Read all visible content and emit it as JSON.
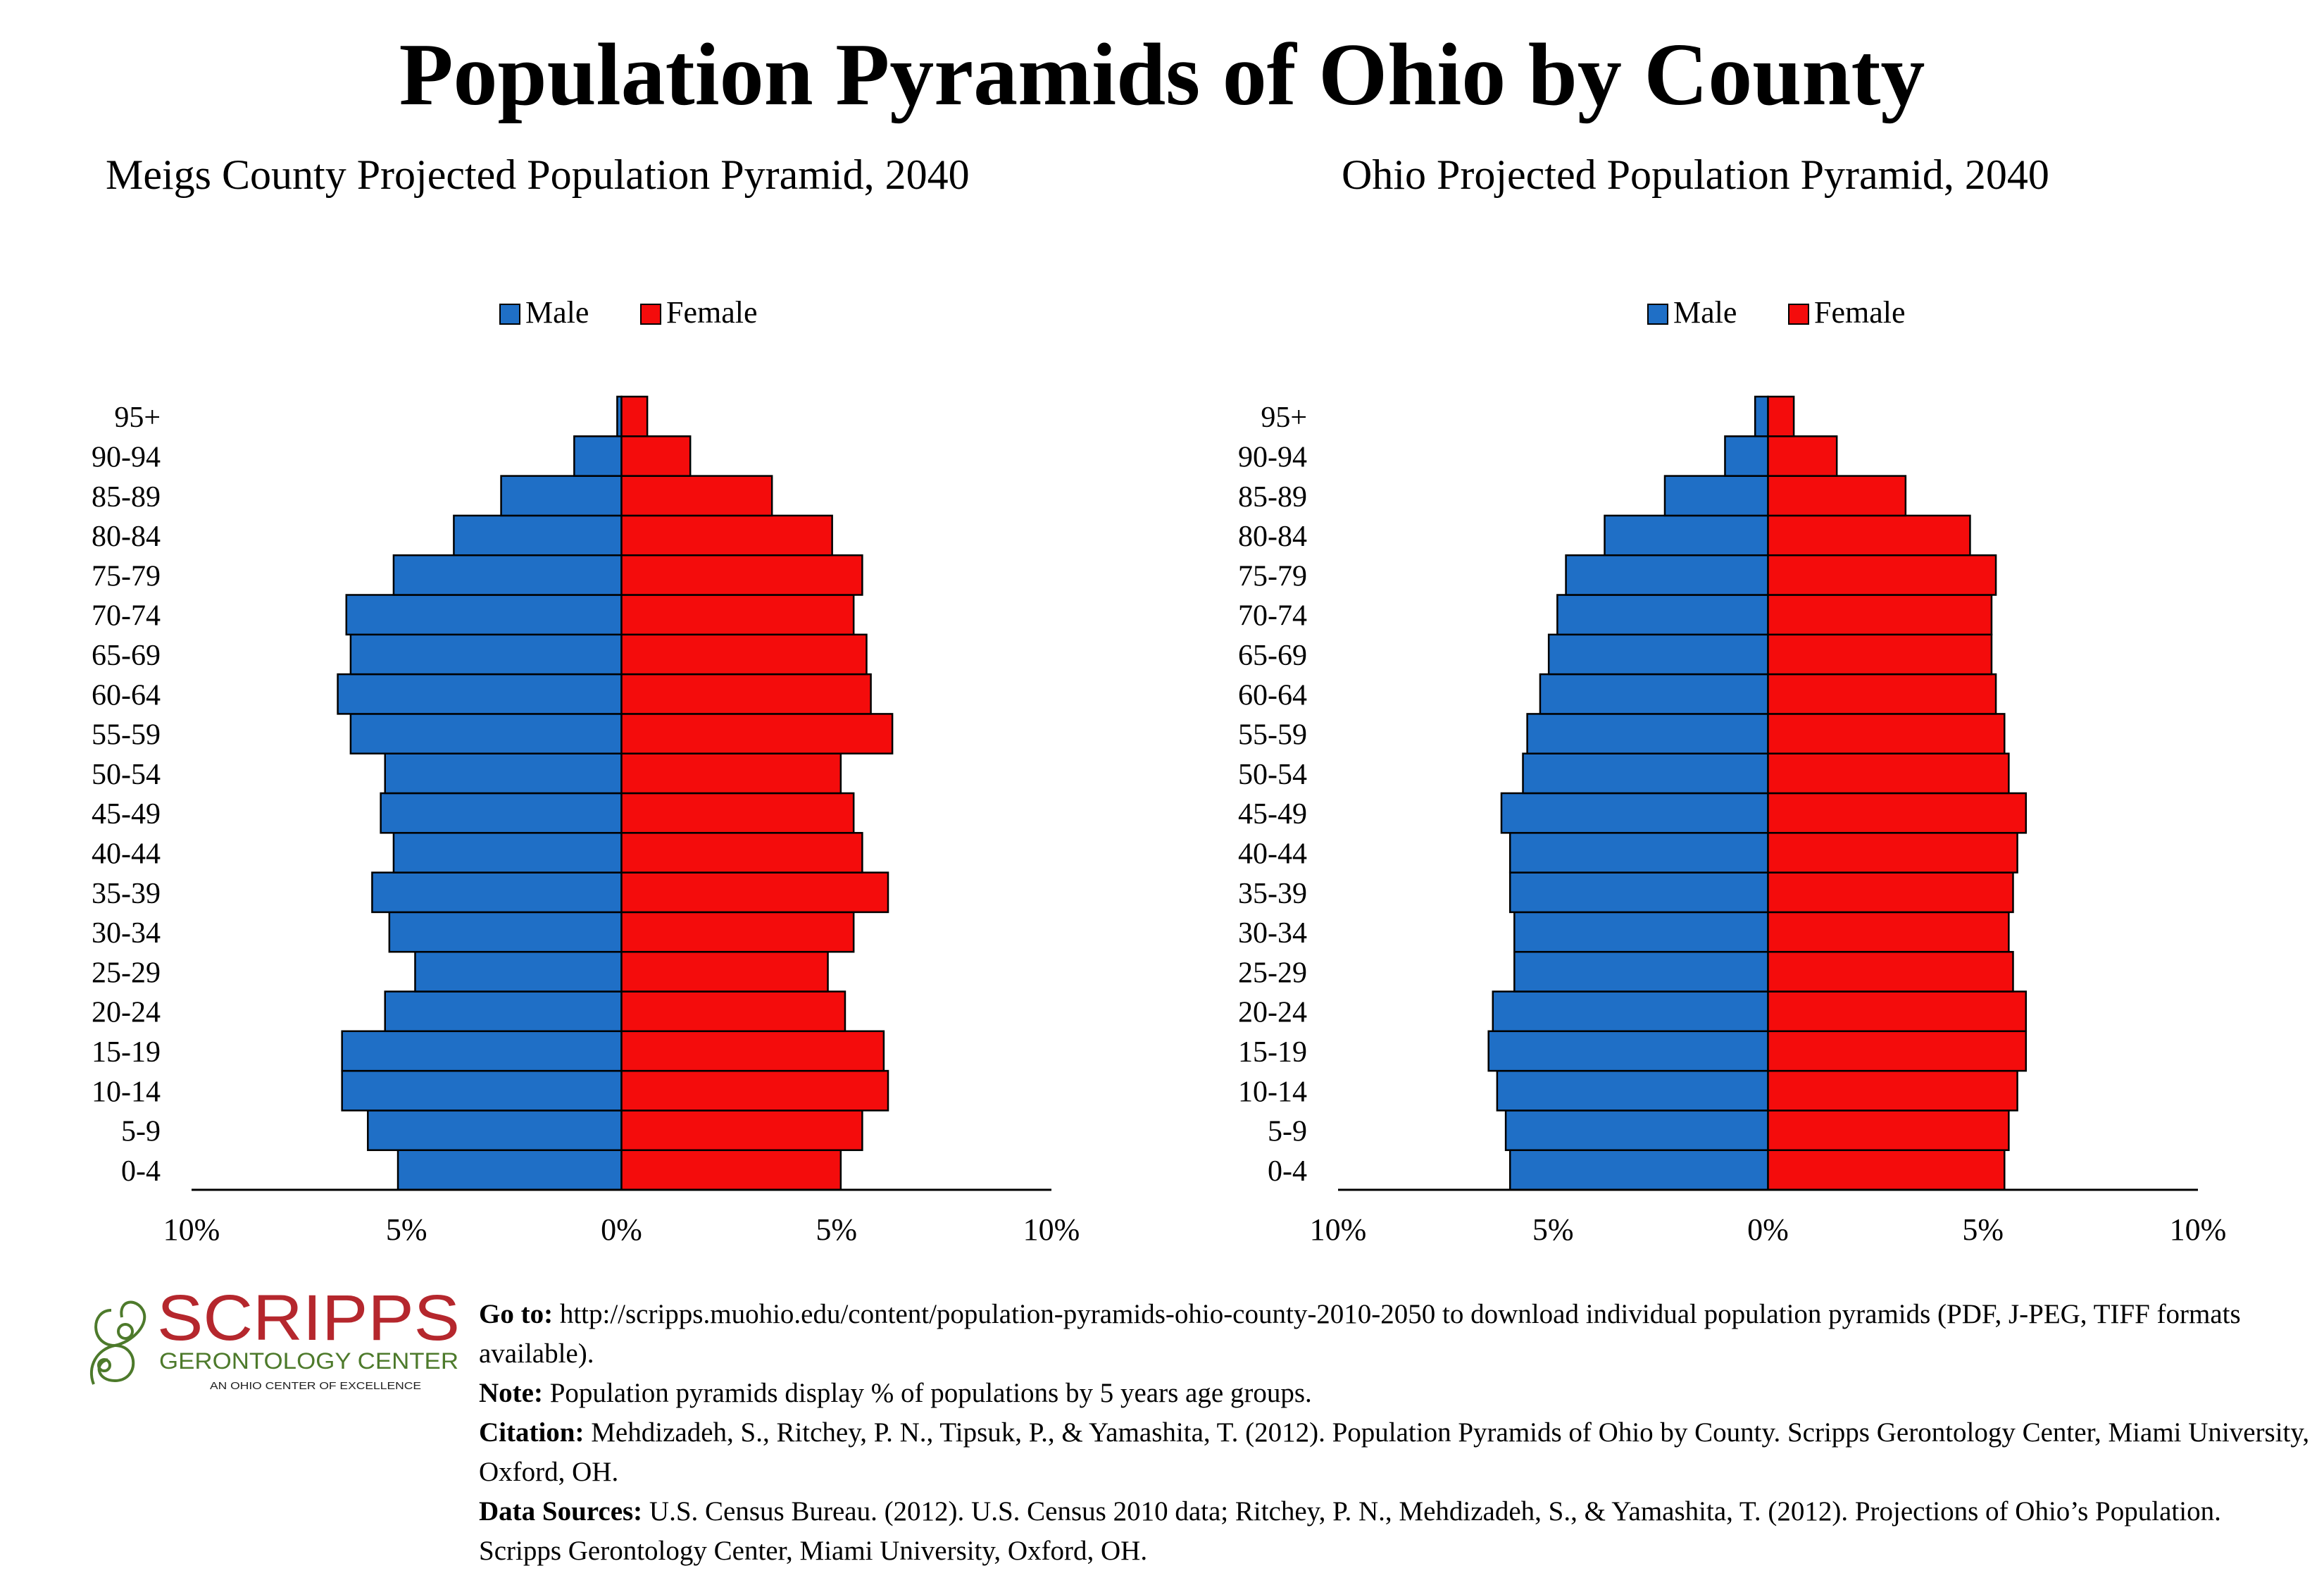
{
  "title": "Population Pyramids of Ohio by County",
  "chart_data": [
    {
      "type": "bar",
      "orientation": "horizontal-pyramid",
      "title": "Meigs County Projected Population Pyramid, 2040",
      "categories": [
        "0-4",
        "5-9",
        "10-14",
        "15-19",
        "20-24",
        "25-29",
        "30-34",
        "35-39",
        "40-44",
        "45-49",
        "50-54",
        "55-59",
        "60-64",
        "65-69",
        "70-74",
        "75-79",
        "80-84",
        "85-89",
        "90-94",
        "95+"
      ],
      "series": [
        {
          "name": "Male",
          "color": "#1f6fc6",
          "values": [
            5.2,
            5.9,
            6.5,
            6.5,
            5.5,
            4.8,
            5.4,
            5.8,
            5.3,
            5.6,
            5.5,
            6.3,
            6.6,
            6.3,
            6.4,
            5.3,
            3.9,
            2.8,
            1.1,
            0.1
          ]
        },
        {
          "name": "Female",
          "color": "#f40c0c",
          "values": [
            5.1,
            5.6,
            6.2,
            6.1,
            5.2,
            4.8,
            5.4,
            6.2,
            5.6,
            5.4,
            5.1,
            6.3,
            5.8,
            5.7,
            5.4,
            5.6,
            4.9,
            3.5,
            1.6,
            0.6
          ]
        }
      ],
      "xlim": [
        -10,
        10
      ],
      "tick_labels": [
        "10%",
        "5%",
        "0%",
        "5%",
        "10%"
      ],
      "legend": "top-center"
    },
    {
      "type": "bar",
      "orientation": "horizontal-pyramid",
      "title": "Ohio Projected Population Pyramid, 2040",
      "categories": [
        "0-4",
        "5-9",
        "10-14",
        "15-19",
        "20-24",
        "25-29",
        "30-34",
        "35-39",
        "40-44",
        "45-49",
        "50-54",
        "55-59",
        "60-64",
        "65-69",
        "70-74",
        "75-79",
        "80-84",
        "85-89",
        "90-94",
        "95+"
      ],
      "series": [
        {
          "name": "Male",
          "color": "#1f6fc6",
          "values": [
            6.0,
            6.1,
            6.3,
            6.5,
            6.4,
            5.9,
            5.9,
            6.0,
            6.0,
            6.2,
            5.7,
            5.6,
            5.3,
            5.1,
            4.9,
            4.7,
            3.8,
            2.4,
            1.0,
            0.3
          ]
        },
        {
          "name": "Female",
          "color": "#f40c0c",
          "values": [
            5.5,
            5.6,
            5.8,
            6.0,
            6.0,
            5.7,
            5.6,
            5.7,
            5.8,
            6.0,
            5.6,
            5.5,
            5.3,
            5.2,
            5.2,
            5.3,
            4.7,
            3.2,
            1.6,
            0.6
          ]
        }
      ],
      "xlim": [
        -10,
        10
      ],
      "tick_labels": [
        "10%",
        "5%",
        "0%",
        "5%",
        "10%"
      ],
      "legend": "top-center"
    }
  ],
  "logo": {
    "name": "SCRIPPS",
    "subtitle": "GERONTOLOGY CENTER",
    "tagline": "AN OHIO CENTER OF EXCELLENCE"
  },
  "footer": {
    "goto_label": "Go to:",
    "goto_text": "http://scripps.muohio.edu/content/population-pyramids-ohio-county-2010-2050 to download individual population pyramids (PDF, J-PEG, TIFF formats available).",
    "note_label": "Note:",
    "note_text": "Population pyramids display % of populations by 5 years age groups.",
    "citation_label": "Citation:",
    "citation_text": "Mehdizadeh, S., Ritchey, P. N., Tipsuk, P., & Yamashita, T. (2012). Population Pyramids of Ohio by County. Scripps Gerontology Center, Miami University, Oxford, OH.",
    "sources_label": "Data Sources:",
    "sources_text": "U.S. Census Bureau. (2012). U.S. Census 2010 data; Ritchey, P. N., Mehdizadeh, S., & Yamashita, T. (2012). Projections of Ohio’s Population. Scripps Gerontology Center, Miami University, Oxford, OH."
  }
}
